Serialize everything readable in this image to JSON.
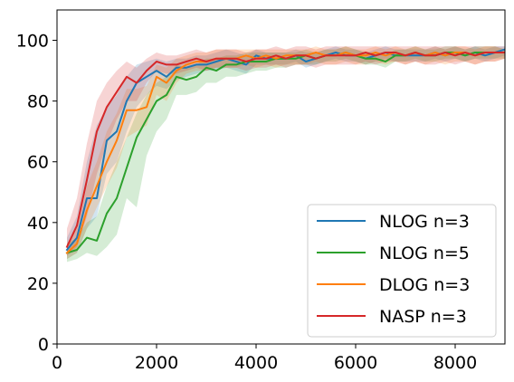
{
  "chart_data": {
    "type": "line",
    "xlim": [
      0,
      9000
    ],
    "ylim": [
      0,
      110
    ],
    "xticks": [
      0,
      2000,
      4000,
      6000,
      8000
    ],
    "xtick_labels": [
      "0",
      "2000",
      "4000",
      "6000",
      "8000"
    ],
    "yticks": [
      0,
      20,
      40,
      60,
      80,
      100
    ],
    "ytick_labels": [
      "0",
      "20",
      "40",
      "60",
      "80",
      "100"
    ],
    "legend_position": "lower-right",
    "grid": false,
    "series": [
      {
        "name": "NLOG n=3",
        "color": "#1f77b4",
        "x": [
          200,
          400,
          600,
          800,
          1000,
          1200,
          1400,
          1600,
          1800,
          2000,
          2200,
          2400,
          2600,
          2800,
          3000,
          3200,
          3400,
          3600,
          3800,
          4000,
          4200,
          4400,
          4600,
          4800,
          5000,
          5200,
          5400,
          5600,
          5800,
          6000,
          6200,
          6400,
          6600,
          6800,
          7000,
          7200,
          7400,
          7600,
          7800,
          8000,
          8200,
          8400,
          8600,
          8800,
          9000
        ],
        "y": [
          31,
          35,
          48,
          48,
          67,
          70,
          80,
          86,
          88,
          90,
          88,
          91,
          91,
          92,
          92,
          93,
          94,
          93,
          92,
          95,
          94,
          94,
          94,
          95,
          93,
          94,
          95,
          96,
          95,
          95,
          94,
          95,
          96,
          95,
          95,
          95,
          95,
          96,
          95,
          96,
          95,
          96,
          95,
          96,
          97
        ],
        "lower": [
          28,
          30,
          38,
          42,
          56,
          60,
          70,
          78,
          82,
          85,
          84,
          87,
          88,
          89,
          90,
          90,
          91,
          90,
          89,
          92,
          92,
          92,
          92,
          93,
          91,
          92,
          93,
          94,
          93,
          93,
          92,
          93,
          94,
          93,
          93,
          93,
          93,
          94,
          93,
          94,
          93,
          94,
          93,
          94,
          95
        ],
        "upper": [
          35,
          42,
          60,
          72,
          78,
          82,
          88,
          92,
          93,
          94,
          93,
          94,
          94,
          95,
          95,
          96,
          97,
          96,
          95,
          97,
          96,
          96,
          96,
          97,
          96,
          96,
          97,
          98,
          97,
          97,
          96,
          97,
          98,
          97,
          97,
          97,
          97,
          98,
          97,
          98,
          97,
          98,
          97,
          98,
          98
        ]
      },
      {
        "name": "NLOG n=5",
        "color": "#2ca02c",
        "x": [
          200,
          400,
          600,
          800,
          1000,
          1200,
          1400,
          1600,
          1800,
          2000,
          2200,
          2400,
          2600,
          2800,
          3000,
          3200,
          3400,
          3600,
          3800,
          4000,
          4200,
          4400,
          4600,
          4800,
          5000,
          5200,
          5400,
          5600,
          5800,
          6000,
          6200,
          6400,
          6600,
          6800,
          7000,
          7200,
          7400,
          7600,
          7800,
          8000,
          8200,
          8400,
          8600,
          8800,
          9000
        ],
        "y": [
          30,
          31,
          35,
          34,
          43,
          48,
          58,
          68,
          74,
          80,
          82,
          88,
          87,
          88,
          91,
          90,
          92,
          92,
          93,
          93,
          93,
          94,
          94,
          94,
          95,
          94,
          95,
          95,
          96,
          95,
          94,
          94,
          93,
          95,
          95,
          96,
          95,
          95,
          96,
          96,
          95,
          96,
          96,
          96,
          96
        ],
        "lower": [
          27,
          28,
          30,
          29,
          32,
          36,
          48,
          45,
          62,
          70,
          74,
          82,
          82,
          83,
          86,
          86,
          88,
          88,
          89,
          90,
          90,
          91,
          91,
          92,
          92,
          92,
          93,
          93,
          94,
          93,
          92,
          92,
          91,
          93,
          93,
          94,
          93,
          93,
          94,
          94,
          93,
          94,
          94,
          94,
          94
        ],
        "upper": [
          33,
          35,
          40,
          42,
          52,
          60,
          68,
          76,
          82,
          86,
          88,
          92,
          91,
          92,
          94,
          94,
          95,
          95,
          96,
          96,
          96,
          96,
          96,
          96,
          97,
          96,
          97,
          97,
          98,
          97,
          96,
          96,
          95,
          97,
          97,
          98,
          97,
          97,
          98,
          98,
          97,
          98,
          98,
          98,
          97
        ]
      },
      {
        "name": "DLOG n=3",
        "color": "#ff7f0e",
        "x": [
          200,
          400,
          600,
          800,
          1000,
          1200,
          1400,
          1600,
          1800,
          2000,
          2200,
          2400,
          2600,
          2800,
          3000,
          3200,
          3400,
          3600,
          3800,
          4000,
          4200,
          4400,
          4600,
          4800,
          5000,
          5200,
          5400,
          5600,
          5800,
          6000,
          6200,
          6400,
          6600,
          6800,
          7000,
          7200,
          7400,
          7600,
          7800,
          8000,
          8200,
          8400,
          8600,
          8800,
          9000
        ],
        "y": [
          30,
          33,
          44,
          52,
          60,
          67,
          77,
          77,
          78,
          88,
          86,
          90,
          92,
          93,
          93,
          94,
          94,
          94,
          95,
          94,
          95,
          94,
          95,
          95,
          95,
          96,
          95,
          95,
          96,
          95,
          95,
          96,
          95,
          96,
          95,
          96,
          95,
          96,
          95,
          96,
          96,
          95,
          96,
          96,
          96
        ],
        "lower": [
          28,
          30,
          38,
          45,
          52,
          58,
          68,
          70,
          72,
          82,
          80,
          86,
          89,
          90,
          90,
          91,
          91,
          91,
          92,
          91,
          92,
          91,
          92,
          92,
          92,
          93,
          92,
          92,
          93,
          92,
          92,
          93,
          92,
          93,
          92,
          93,
          92,
          93,
          92,
          93,
          93,
          92,
          93,
          93,
          94
        ],
        "upper": [
          33,
          38,
          52,
          60,
          70,
          76,
          84,
          84,
          85,
          92,
          91,
          94,
          95,
          96,
          96,
          97,
          97,
          97,
          97,
          97,
          97,
          97,
          97,
          97,
          97,
          98,
          97,
          97,
          98,
          97,
          97,
          98,
          97,
          98,
          97,
          98,
          97,
          98,
          97,
          98,
          98,
          97,
          98,
          98,
          97
        ]
      },
      {
        "name": "NASP n=3",
        "color": "#d62728",
        "x": [
          200,
          400,
          600,
          800,
          1000,
          1200,
          1400,
          1600,
          1800,
          2000,
          2200,
          2400,
          2600,
          2800,
          3000,
          3200,
          3400,
          3600,
          3800,
          4000,
          4200,
          4400,
          4600,
          4800,
          5000,
          5200,
          5400,
          5600,
          5800,
          6000,
          6200,
          6400,
          6600,
          6800,
          7000,
          7200,
          7400,
          7600,
          7800,
          8000,
          8200,
          8400,
          8600,
          8800,
          9000
        ],
        "y": [
          32,
          39,
          54,
          70,
          78,
          83,
          88,
          86,
          90,
          93,
          92,
          92,
          93,
          94,
          93,
          94,
          94,
          94,
          93,
          94,
          94,
          95,
          94,
          95,
          95,
          94,
          95,
          95,
          95,
          95,
          96,
          95,
          96,
          96,
          95,
          96,
          95,
          95,
          96,
          95,
          96,
          95,
          96,
          96,
          96
        ],
        "lower": [
          29,
          32,
          42,
          56,
          66,
          74,
          80,
          80,
          86,
          90,
          89,
          89,
          90,
          91,
          90,
          91,
          91,
          91,
          90,
          91,
          91,
          92,
          91,
          92,
          92,
          91,
          92,
          92,
          92,
          92,
          93,
          92,
          93,
          93,
          92,
          93,
          92,
          92,
          93,
          92,
          93,
          92,
          93,
          93,
          94
        ],
        "upper": [
          38,
          48,
          66,
          80,
          86,
          90,
          93,
          91,
          94,
          96,
          95,
          95,
          96,
          97,
          96,
          97,
          97,
          97,
          96,
          97,
          97,
          98,
          97,
          98,
          98,
          97,
          98,
          98,
          98,
          98,
          98,
          98,
          98,
          98,
          98,
          98,
          98,
          98,
          98,
          98,
          98,
          98,
          98,
          98,
          98
        ]
      }
    ]
  }
}
